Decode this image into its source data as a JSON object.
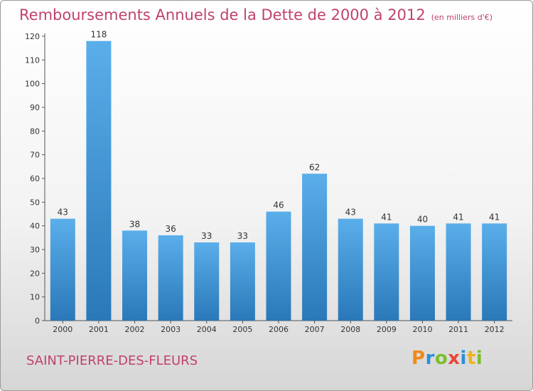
{
  "header": {
    "title": "Remboursements Annuels de la Dette de 2000 à 2012",
    "unit": "(en milliers d'€)"
  },
  "footer": {
    "commune": "SAINT-PIERRE-DES-FLEURS",
    "logo_letters": [
      "P",
      "r",
      "o",
      "x",
      "i",
      "t",
      "i"
    ],
    "logo_colors": [
      "#f08a1c",
      "#2a8fd8",
      "#7cbf2a",
      "#e8463a",
      "#2a8fd8",
      "#f0b21c",
      "#7cbf2a"
    ]
  },
  "chart_data": {
    "type": "bar",
    "categories": [
      "2000",
      "2001",
      "2002",
      "2003",
      "2004",
      "2005",
      "2006",
      "2007",
      "2008",
      "2009",
      "2010",
      "2011",
      "2012"
    ],
    "values": [
      43,
      118,
      38,
      36,
      33,
      33,
      46,
      62,
      43,
      41,
      40,
      41,
      41
    ],
    "value_labels": [
      "43",
      "118",
      "38",
      "36",
      "33",
      "33",
      "46",
      "62",
      "43",
      "41",
      "40",
      "41",
      "41"
    ],
    "yticks": [
      "0",
      "10",
      "20",
      "30",
      "40",
      "50",
      "60",
      "70",
      "80",
      "90",
      "100",
      "110",
      "120"
    ],
    "ylim": [
      0,
      120
    ],
    "grid": false,
    "bar_color_top": "#5aaeea",
    "bar_color_bottom": "#2a78b8"
  }
}
